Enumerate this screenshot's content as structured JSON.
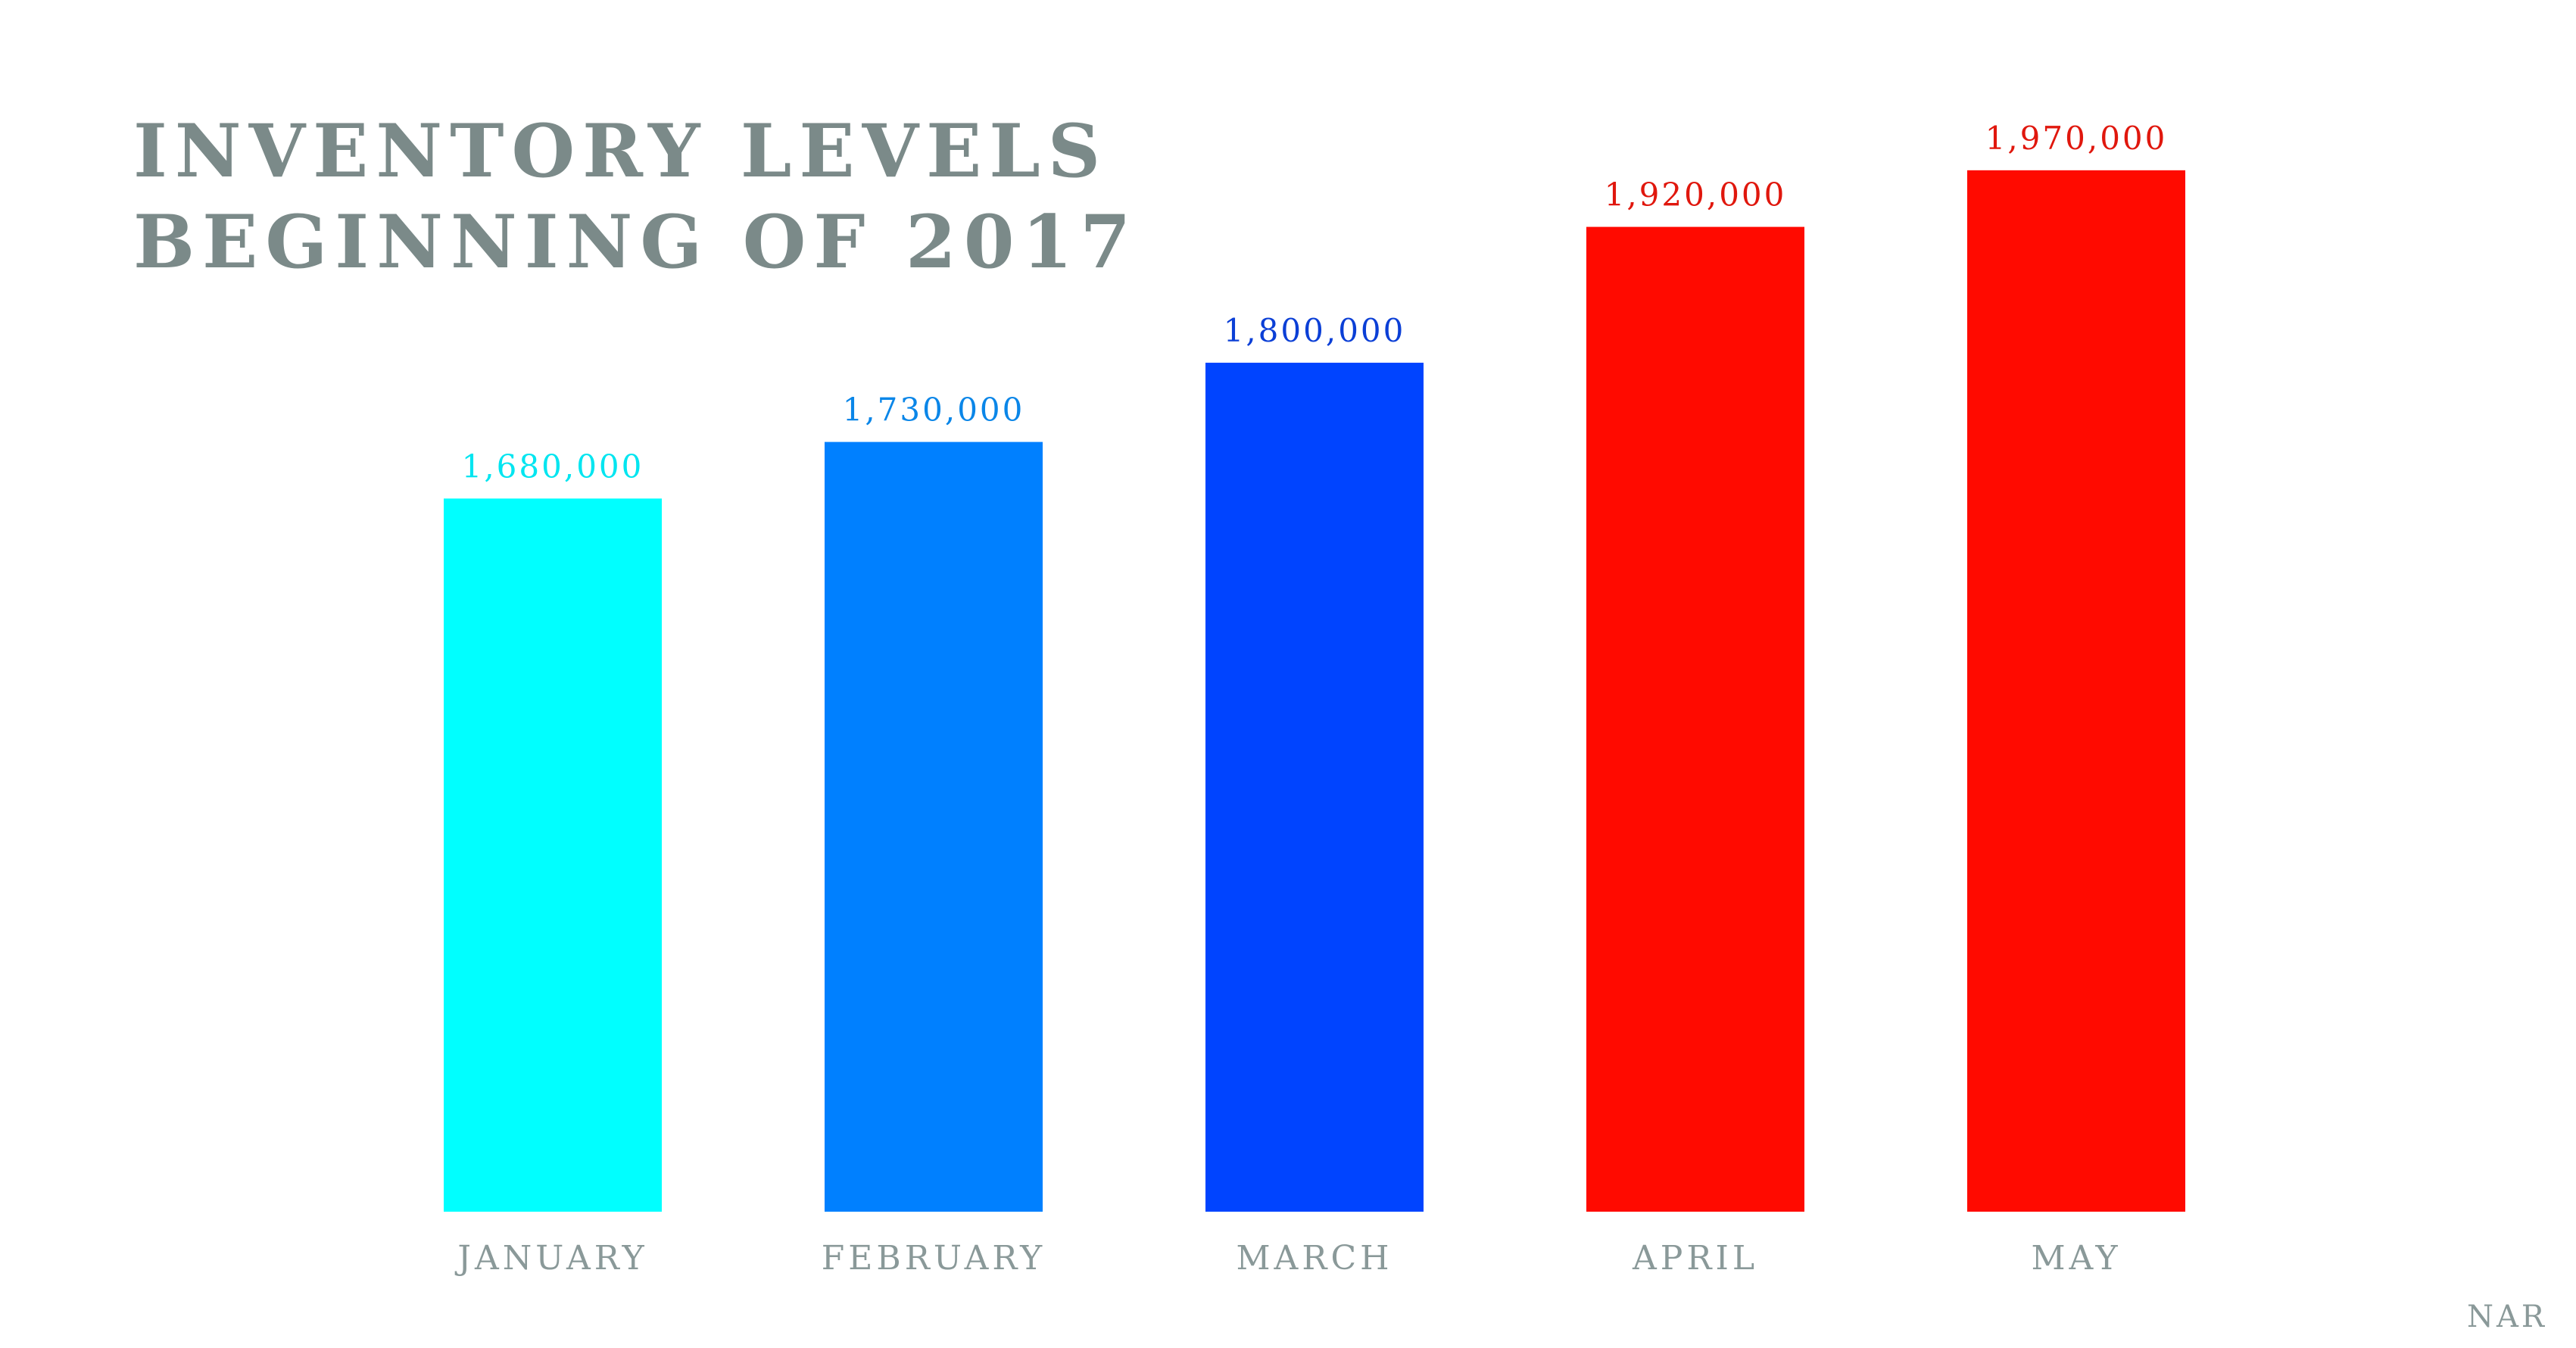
{
  "title_lines": [
    "INVENTORY LEVELS",
    "BEGINNING OF 2017"
  ],
  "source": "NAR",
  "chart_data": {
    "type": "bar",
    "title": "INVENTORY LEVELS BEGINNING OF 2017",
    "categories": [
      "JANUARY",
      "FEBRUARY",
      "MARCH",
      "APRIL",
      "MAY"
    ],
    "values": [
      1680000,
      1730000,
      1800000,
      1920000,
      1970000
    ],
    "value_labels": [
      "1,680,000",
      "1,730,000",
      "1,800,000",
      "1,920,000",
      "1,970,000"
    ],
    "bar_colors": [
      "#00ffff",
      "#0080ff",
      "#0044ff",
      "#ff0a00",
      "#ff0a00"
    ],
    "label_colors": [
      "#00e5f0",
      "#0a86e8",
      "#0b3fd6",
      "#e0170d",
      "#e0170d"
    ],
    "category_label_color": "#8a9999",
    "ylim": [
      1050000,
      2000000
    ],
    "xlabel": "",
    "ylabel": "",
    "grid": false,
    "legend": "none"
  }
}
